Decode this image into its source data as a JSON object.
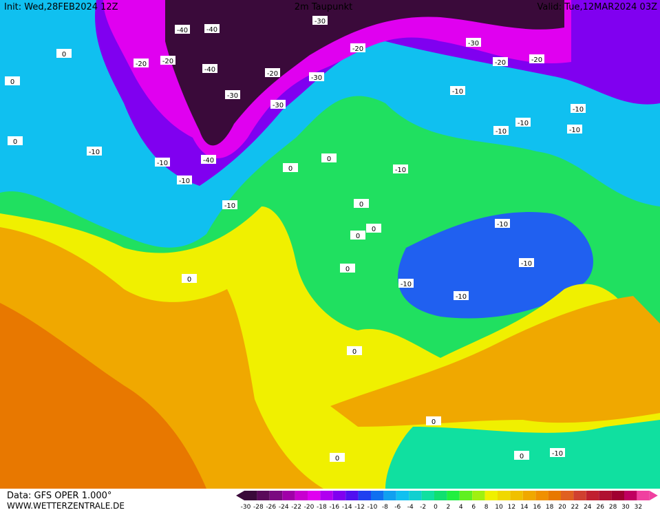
{
  "header": {
    "init": "Init: Wed,28FEB2024 12Z",
    "title": "2m Taupunkt",
    "valid": "Valid: Tue,12MAR2024 03Z"
  },
  "footer": {
    "source": "Data: GFS OPER 1.000°",
    "site": "WWW.WETTERZENTRALE.DE"
  },
  "contour_labels": [
    -40,
    -40,
    -40,
    -40,
    -30,
    -30,
    -30,
    -30,
    -30,
    -20,
    -20,
    -20,
    -20,
    -20,
    -20,
    -10,
    -10,
    -10,
    -10,
    -10,
    -10,
    -10,
    -10,
    -10,
    -10,
    -10,
    -10,
    -10,
    -10,
    -10,
    0,
    0,
    0,
    0,
    0,
    0,
    0,
    0,
    0,
    0,
    0,
    0,
    0,
    0
  ],
  "scale": {
    "ticks": [
      -30,
      -28,
      -26,
      -24,
      -22,
      -20,
      -18,
      -16,
      -14,
      -12,
      -10,
      -8,
      -6,
      -4,
      -2,
      0,
      2,
      4,
      6,
      8,
      10,
      12,
      14,
      16,
      18,
      20,
      22,
      24,
      26,
      28,
      30,
      32
    ],
    "colors": [
      "#3a0a3a",
      "#5a0a5a",
      "#7a0a80",
      "#a000a8",
      "#c800d0",
      "#e000f0",
      "#b000f0",
      "#8000f0",
      "#5010f0",
      "#2040f0",
      "#1070f0",
      "#10a0f0",
      "#10c0f0",
      "#10d0d0",
      "#10e0a0",
      "#10e070",
      "#20f040",
      "#60f020",
      "#a0f010",
      "#f0f000",
      "#f0d800",
      "#f0c000",
      "#f0a800",
      "#f09000",
      "#e87800",
      "#e06020",
      "#d04030",
      "#c02030",
      "#b01030",
      "#a00030",
      "#c00060",
      "#f040a0"
    ]
  }
}
